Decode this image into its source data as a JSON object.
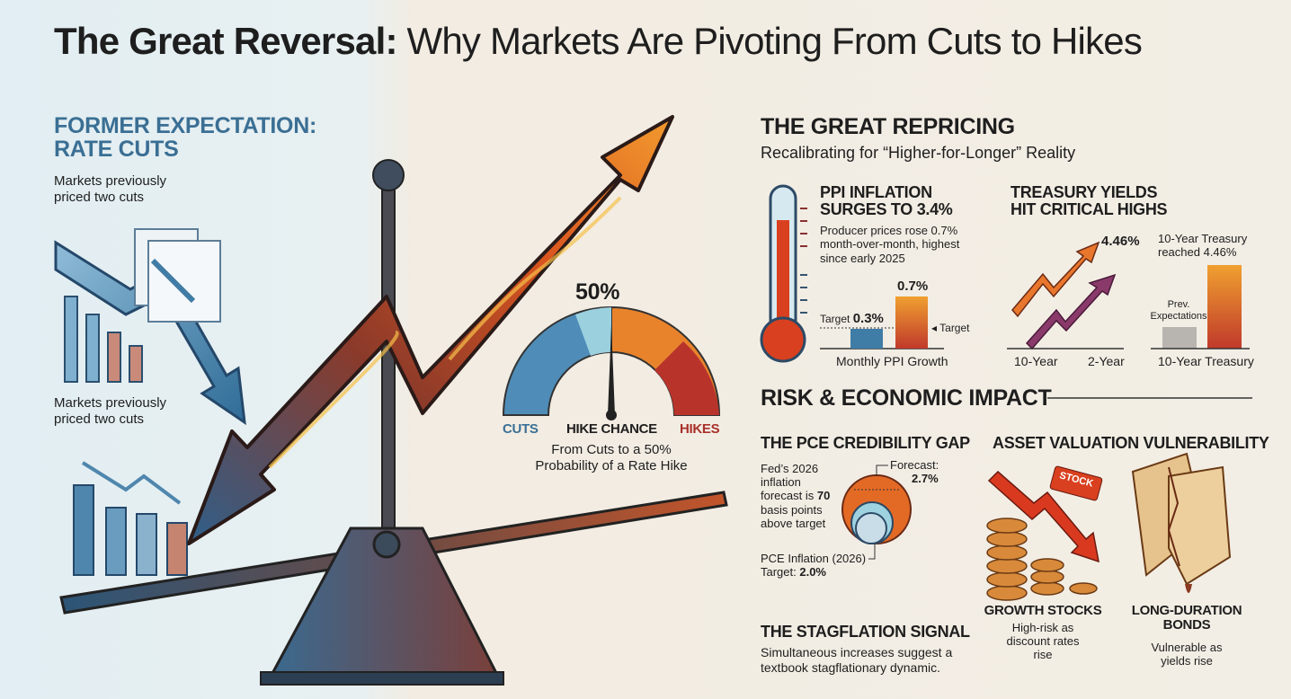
{
  "title": {
    "bold": "The Great Reversal:",
    "rest": " Why Markets Are Pivoting From Cuts to Hikes"
  },
  "left": {
    "heading_line1": "FORMER EXPECTATION:",
    "heading_line2": "RATE CUTS",
    "note_top": "Markets previously priced two cuts",
    "note_bottom": "Markets previously priced two cuts"
  },
  "gauge": {
    "value_label": "50%",
    "probability": 50,
    "left_label": "CUTS",
    "center_label": "HIKE CHANCE",
    "right_label": "HIKES",
    "caption": "From Cuts to a 50% Probability of a Rate Hike"
  },
  "repricing": {
    "heading": "THE GREAT REPRICING",
    "subheading": "Recalibrating for “Higher-for-Longer” Reality"
  },
  "ppi": {
    "heading_line1": "PPI INFLATION",
    "heading_line2": "SURGES TO 3.4%",
    "text": "Producer prices rose 0.7% month-over-month, highest since early 2025",
    "target_label": "Target",
    "target_value": "0.3%",
    "actual_value": "0.7%",
    "target_arrow_label": "◂ Target",
    "axis_label": "Monthly PPI Growth",
    "chart_values": {
      "target": 0.3,
      "actual": 0.7
    }
  },
  "treasury": {
    "heading_line1": "TREASURY YIELDS",
    "heading_line2": "HIT CRITICAL HIGHS",
    "arrow_value": "4.46%",
    "label_10y": "10-Year",
    "label_2y": "2-Year",
    "note": "10-Year Treasury reached 4.46%",
    "prev_label": "Prev. Expectations",
    "axis_label": "10-Year Treasury"
  },
  "risk": {
    "heading": "RISK & ECONOMIC IMPACT"
  },
  "pce": {
    "heading": "THE PCE CREDIBILITY GAP",
    "text_pre": "Fed’s 2026 inflation forecast is ",
    "text_bold": "70",
    "text_post": " basis points above target",
    "forecast_label": "Forecast:",
    "forecast_value": "2.7%",
    "target_label": "PCE Inflation (2026) Target: ",
    "target_value": "2.0%"
  },
  "stagflation": {
    "heading": "THE STAGFLATION SIGNAL",
    "text": "Simultaneous increases suggest a textbook stagflationary dynamic."
  },
  "assets": {
    "heading": "ASSET VALUATION VULNERABILITY",
    "stock_tag": "STOCK",
    "growth_title": "GROWTH STOCKS",
    "growth_text": "High-risk as discount rates rise",
    "bonds_title": "LONG-DURATION BONDS",
    "bonds_text": "Vulnerable as yields rise"
  },
  "colors": {
    "blue": "#3f7ca6",
    "orange": "#e8762c",
    "red": "#c0392b",
    "dark": "#1e1e1e"
  }
}
